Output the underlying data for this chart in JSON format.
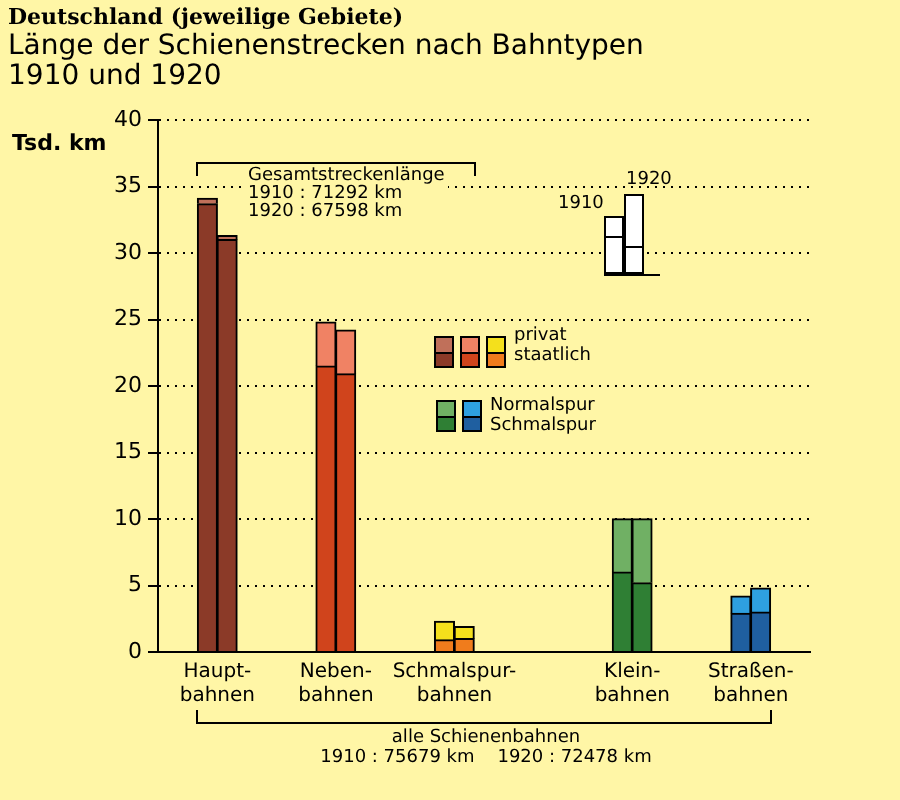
{
  "chart_data": {
    "type": "bar",
    "subtitle": "Deutschland (jeweilige Gebiete)",
    "title": "Länge der Schienenstrecken nach Bahntypen\n1910 und 1920",
    "ylabel": "Tsd. km",
    "categories": [
      null,
      null,
      "Haupt-\nbahnen",
      null,
      null,
      null,
      null,
      null,
      "Neben-\nbahnen",
      null,
      null,
      null,
      null,
      null,
      "Schmalspur-\nbahnen",
      null,
      null,
      null,
      null,
      null,
      null,
      null,
      null,
      "Klein-\nbahnen",
      null,
      null,
      null,
      null,
      null,
      "Straßen-\nbahnen",
      null,
      null,
      null
    ],
    "stacked": true,
    "series": [
      {
        "values": [
          null,
          null,
          33.7,
          31.0,
          null,
          null,
          null,
          null,
          21.5,
          20.9,
          null,
          null,
          null,
          null,
          0.9,
          1.0,
          null,
          null,
          null,
          null,
          null,
          null,
          null,
          6.0,
          5.2,
          null,
          null,
          null,
          null,
          2.9,
          3.0,
          null,
          null
        ],
        "colors": [
          null,
          null,
          "#8b3a28",
          "#8b3a28",
          null,
          null,
          null,
          null,
          "#d0441c",
          "#d0441c",
          null,
          null,
          null,
          null,
          "#f07c1c",
          "#f07c1c",
          null,
          null,
          null,
          null,
          null,
          null,
          null,
          "#2f7f34",
          "#2f7f34",
          null,
          null,
          null,
          null,
          "#1f5fa0",
          "#1f5fa0",
          null,
          null
        ]
      },
      {
        "values": [
          null,
          null,
          0.4,
          0.3,
          null,
          null,
          null,
          null,
          3.3,
          3.3,
          null,
          null,
          null,
          null,
          1.4,
          0.9,
          null,
          null,
          null,
          null,
          null,
          null,
          null,
          4.0,
          4.8,
          null,
          null,
          null,
          null,
          1.3,
          1.8,
          null,
          null
        ],
        "colors": [
          null,
          null,
          "#c0705a",
          "#c0705a",
          null,
          null,
          null,
          null,
          "#f08264",
          "#f08264",
          null,
          null,
          null,
          null,
          "#f4e01c",
          "#f4e01c",
          null,
          null,
          null,
          null,
          null,
          null,
          null,
          "#70b064",
          "#70b064",
          null,
          null,
          null,
          null,
          "#2ea0e0",
          "#2ea0e0",
          null,
          null
        ]
      }
    ],
    "ylim": [
      0,
      40
    ],
    "yticks": [
      0,
      5,
      10,
      15,
      20,
      25,
      30,
      35,
      40
    ],
    "grid": "y",
    "annotations": [
      "Gesamtstreckenlänge\n1910 : 71292 km\n1920 : 67598 km",
      "alle Schienenbahnen\n1910 : 75679 km    1920 : 72478 km",
      "privat",
      "staatlich",
      "Normalspur",
      "Schmalspur",
      "1910",
      "1920"
    ]
  }
}
